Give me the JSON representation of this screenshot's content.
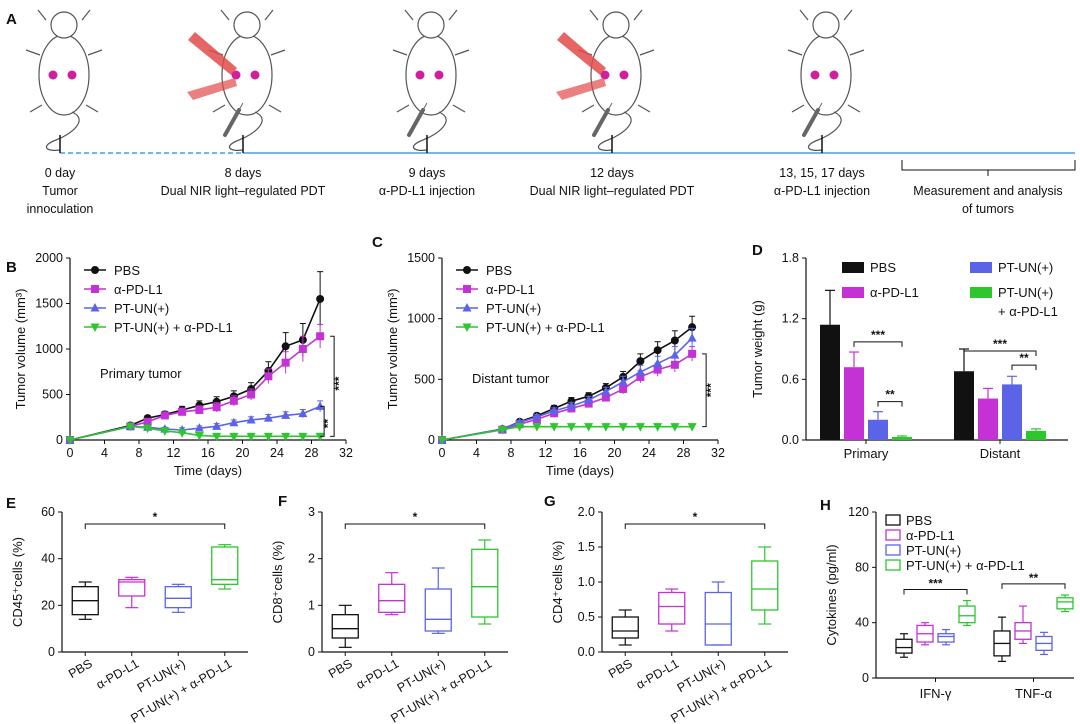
{
  "panels": [
    "A",
    "B",
    "C",
    "D",
    "E",
    "F",
    "G",
    "H"
  ],
  "timeline": {
    "events": [
      {
        "day": "0 day",
        "label": "Tumor\ninnoculation",
        "laser": false,
        "syringe": false
      },
      {
        "day": "8 days",
        "label": "Dual NIR light–regulated PDT",
        "laser": true,
        "syringe": true
      },
      {
        "day": "9 days",
        "label": "α-PD-L1 injection",
        "laser": false,
        "syringe": true
      },
      {
        "day": "12 days",
        "label": "Dual NIR light–regulated PDT",
        "laser": true,
        "syringe": true
      },
      {
        "day": "13, 15, 17 days",
        "label": "α-PD-L1 injection",
        "laser": false,
        "syringe": true
      }
    ],
    "final_label": "Measurement and analysis\nof tumors"
  },
  "colors": {
    "PBS": "#111111",
    "aPDL1": "#c432d6",
    "PTUN": "#5b64e6",
    "PTUN_aPDL1": "#2ec62e"
  },
  "chart_data": [
    {
      "id": "B",
      "type": "line",
      "ylabel": "Tumor volume (mm³)",
      "xlabel": "Time (days)",
      "xlim": [
        0,
        32
      ],
      "ylim": [
        0,
        2000
      ],
      "xticks": [
        0,
        4,
        8,
        12,
        16,
        20,
        24,
        28,
        32
      ],
      "yticks": [
        0,
        500,
        1000,
        1500,
        2000
      ],
      "annotation": "Primary tumor",
      "x": [
        0,
        7,
        9,
        11,
        13,
        15,
        17,
        19,
        21,
        23,
        25,
        27,
        29
      ],
      "series": [
        {
          "name": "PBS",
          "key": "PBS",
          "marker": "circle",
          "values": [
            0,
            160,
            240,
            280,
            330,
            380,
            420,
            480,
            560,
            760,
            1030,
            1100,
            1550
          ],
          "err": [
            0,
            20,
            30,
            35,
            40,
            50,
            55,
            60,
            70,
            100,
            150,
            180,
            300
          ]
        },
        {
          "name": "α-PD-L1",
          "key": "aPDL1",
          "marker": "square",
          "values": [
            0,
            150,
            200,
            270,
            310,
            330,
            360,
            430,
            500,
            700,
            850,
            1000,
            1140
          ],
          "err": [
            0,
            20,
            30,
            35,
            40,
            45,
            50,
            55,
            60,
            80,
            120,
            140,
            130
          ]
        },
        {
          "name": "PT-UN(+)",
          "key": "PTUN",
          "marker": "triangle",
          "values": [
            0,
            150,
            140,
            120,
            110,
            130,
            150,
            190,
            220,
            240,
            270,
            290,
            370
          ],
          "err": [
            0,
            20,
            20,
            20,
            25,
            25,
            30,
            30,
            35,
            40,
            40,
            45,
            60
          ]
        },
        {
          "name": "PT-UN(+) + α-PD-L1",
          "key": "PTUN_aPDL1",
          "marker": "tri-down",
          "values": [
            0,
            150,
            130,
            100,
            80,
            50,
            40,
            40,
            40,
            40,
            40,
            40,
            40
          ],
          "err": [
            0,
            20,
            20,
            15,
            15,
            10,
            10,
            10,
            10,
            10,
            10,
            10,
            10
          ]
        }
      ],
      "significance": [
        "***",
        "**"
      ]
    },
    {
      "id": "C",
      "type": "line",
      "ylabel": "Tumor volume (mm³)",
      "xlabel": "Time (days)",
      "xlim": [
        0,
        32
      ],
      "ylim": [
        0,
        1500
      ],
      "xticks": [
        0,
        4,
        8,
        12,
        16,
        20,
        24,
        28,
        32
      ],
      "yticks": [
        0,
        500,
        1000,
        1500
      ],
      "annotation": "Distant tumor",
      "x": [
        0,
        7,
        9,
        11,
        13,
        15,
        17,
        19,
        21,
        23,
        25,
        27,
        29
      ],
      "series": [
        {
          "name": "PBS",
          "key": "PBS",
          "marker": "circle",
          "values": [
            0,
            90,
            150,
            200,
            260,
            320,
            360,
            430,
            520,
            650,
            740,
            820,
            930
          ],
          "err": [
            0,
            10,
            15,
            20,
            25,
            30,
            30,
            35,
            45,
            60,
            70,
            80,
            90
          ]
        },
        {
          "name": "α-PD-L1",
          "key": "aPDL1",
          "marker": "square",
          "values": [
            0,
            85,
            130,
            170,
            220,
            260,
            300,
            350,
            420,
            520,
            580,
            620,
            710
          ],
          "err": [
            0,
            10,
            15,
            20,
            25,
            25,
            30,
            30,
            40,
            50,
            55,
            60,
            60
          ]
        },
        {
          "name": "PT-UN(+)",
          "key": "PTUN",
          "marker": "triangle",
          "values": [
            0,
            90,
            145,
            190,
            240,
            280,
            330,
            400,
            480,
            560,
            630,
            700,
            840
          ],
          "err": [
            0,
            10,
            15,
            20,
            25,
            30,
            30,
            35,
            45,
            55,
            60,
            70,
            80
          ]
        },
        {
          "name": "PT-UN(+) + α-PD-L1",
          "key": "PTUN_aPDL1",
          "marker": "tri-down",
          "values": [
            0,
            85,
            110,
            110,
            110,
            110,
            110,
            110,
            110,
            110,
            110,
            110,
            110
          ],
          "err": [
            0,
            10,
            15,
            15,
            15,
            15,
            15,
            15,
            15,
            15,
            15,
            15,
            20
          ]
        }
      ],
      "significance": [
        "***"
      ]
    },
    {
      "id": "D",
      "type": "bar",
      "ylabel": "Tumor weight (g)",
      "categories": [
        "Primary",
        "Distant"
      ],
      "ylim": [
        0,
        1.8
      ],
      "yticks": [
        0,
        0.6,
        1.2,
        1.8
      ],
      "series": [
        {
          "name": "PBS",
          "key": "PBS",
          "values": [
            1.14,
            0.68
          ],
          "err": [
            0.34,
            0.22
          ]
        },
        {
          "name": "α-PD-L1",
          "key": "aPDL1",
          "values": [
            0.72,
            0.41
          ],
          "err": [
            0.15,
            0.1
          ]
        },
        {
          "name": "PT-UN(+)",
          "key": "PTUN",
          "values": [
            0.2,
            0.55
          ],
          "err": [
            0.08,
            0.08
          ]
        },
        {
          "name": "PT-UN(+)\n+ α-PD-L1",
          "key": "PTUN_aPDL1",
          "values": [
            0.03,
            0.09
          ],
          "err": [
            0.01,
            0.02
          ]
        }
      ],
      "significance": [
        "***",
        "**",
        "***",
        "**"
      ]
    },
    {
      "id": "E",
      "type": "box",
      "ylabel": "CD45⁺cells (%)",
      "ylim": [
        0,
        60
      ],
      "yticks": [
        0,
        20,
        40,
        60
      ],
      "categories": [
        "PBS",
        "α-PD-L1",
        "PT-UN(+)",
        "PT-UN(+) + α-PD-L1"
      ],
      "boxes": [
        [
          14,
          16,
          22,
          28,
          30
        ],
        [
          19,
          24,
          30,
          31,
          32
        ],
        [
          17,
          19,
          23,
          28,
          29
        ],
        [
          27,
          29,
          31,
          45,
          46
        ]
      ],
      "significance": [
        "*"
      ]
    },
    {
      "id": "F",
      "type": "box",
      "ylabel": "CD8⁺cells (%)",
      "ylim": [
        0,
        3
      ],
      "yticks": [
        0,
        1,
        2,
        3
      ],
      "categories": [
        "PBS",
        "α-PD-L1",
        "PT-UN(+)",
        "PT-UN(+) + α-PD-L1"
      ],
      "boxes": [
        [
          0.1,
          0.3,
          0.5,
          0.8,
          1.0
        ],
        [
          0.8,
          0.85,
          1.1,
          1.45,
          1.7
        ],
        [
          0.4,
          0.45,
          0.7,
          1.35,
          1.8
        ],
        [
          0.6,
          0.75,
          1.4,
          2.2,
          2.4
        ]
      ],
      "significance": [
        "*"
      ]
    },
    {
      "id": "G",
      "type": "box",
      "ylabel": "CD4⁺cells (%)",
      "ylim": [
        0,
        2
      ],
      "yticks": [
        0.0,
        0.5,
        1.0,
        1.5,
        2.0
      ],
      "categories": [
        "PBS",
        "α-PD-L1",
        "PT-UN(+)",
        "PT-UN(+) + α-PD-L1"
      ],
      "boxes": [
        [
          0.1,
          0.2,
          0.3,
          0.5,
          0.6
        ],
        [
          0.3,
          0.4,
          0.65,
          0.85,
          0.9
        ],
        [
          0.1,
          0.1,
          0.4,
          0.85,
          1.0
        ],
        [
          0.4,
          0.6,
          0.9,
          1.3,
          1.5
        ]
      ],
      "significance": [
        "*"
      ]
    },
    {
      "id": "H",
      "type": "box",
      "ylabel": "Cytokines (pg/ml)",
      "ylim": [
        0,
        120
      ],
      "yticks": [
        0,
        40,
        80,
        120
      ],
      "categories": [
        "IFN-γ",
        "TNF-α"
      ],
      "legend": [
        "PBS",
        "α-PD-L1",
        "PT-UN(+)",
        "PT-UN(+) + α-PD-L1"
      ],
      "groups": [
        [
          [
            15,
            18,
            22,
            28,
            32
          ],
          [
            24,
            26,
            32,
            38,
            40
          ],
          [
            24,
            26,
            30,
            32,
            35
          ],
          [
            38,
            40,
            45,
            52,
            56
          ]
        ],
        [
          [
            12,
            16,
            25,
            34,
            44
          ],
          [
            25,
            28,
            34,
            40,
            52
          ],
          [
            17,
            20,
            25,
            30,
            33
          ],
          [
            48,
            50,
            55,
            58,
            60
          ]
        ]
      ],
      "significance": [
        "***",
        "**"
      ]
    }
  ]
}
